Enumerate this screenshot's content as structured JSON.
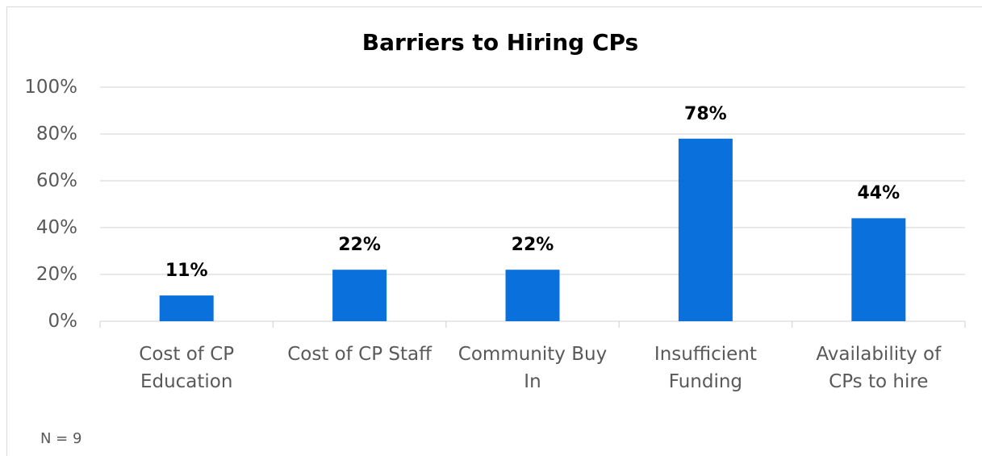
{
  "chart_data": {
    "type": "bar",
    "title": "Barriers to Hiring CPs",
    "categories": [
      "Cost of CP\nEducation",
      "Cost of CP Staff",
      "Community Buy\nIn",
      "Insufficient\nFunding",
      "Availability of\nCPs to hire"
    ],
    "values": [
      11,
      22,
      22,
      78,
      44
    ],
    "value_labels": [
      "11%",
      "22%",
      "22%",
      "78%",
      "44%"
    ],
    "color": "#0a70dc",
    "ylim": [
      0,
      100
    ],
    "yticks": [
      {
        "value": 0,
        "label": "0%"
      },
      {
        "value": 20,
        "label": "20%"
      },
      {
        "value": 40,
        "label": "40%"
      },
      {
        "value": 60,
        "label": "60%"
      },
      {
        "value": 80,
        "label": "80%"
      },
      {
        "value": 100,
        "label": "100%"
      }
    ],
    "grid": true,
    "annotation": "N = 9"
  }
}
